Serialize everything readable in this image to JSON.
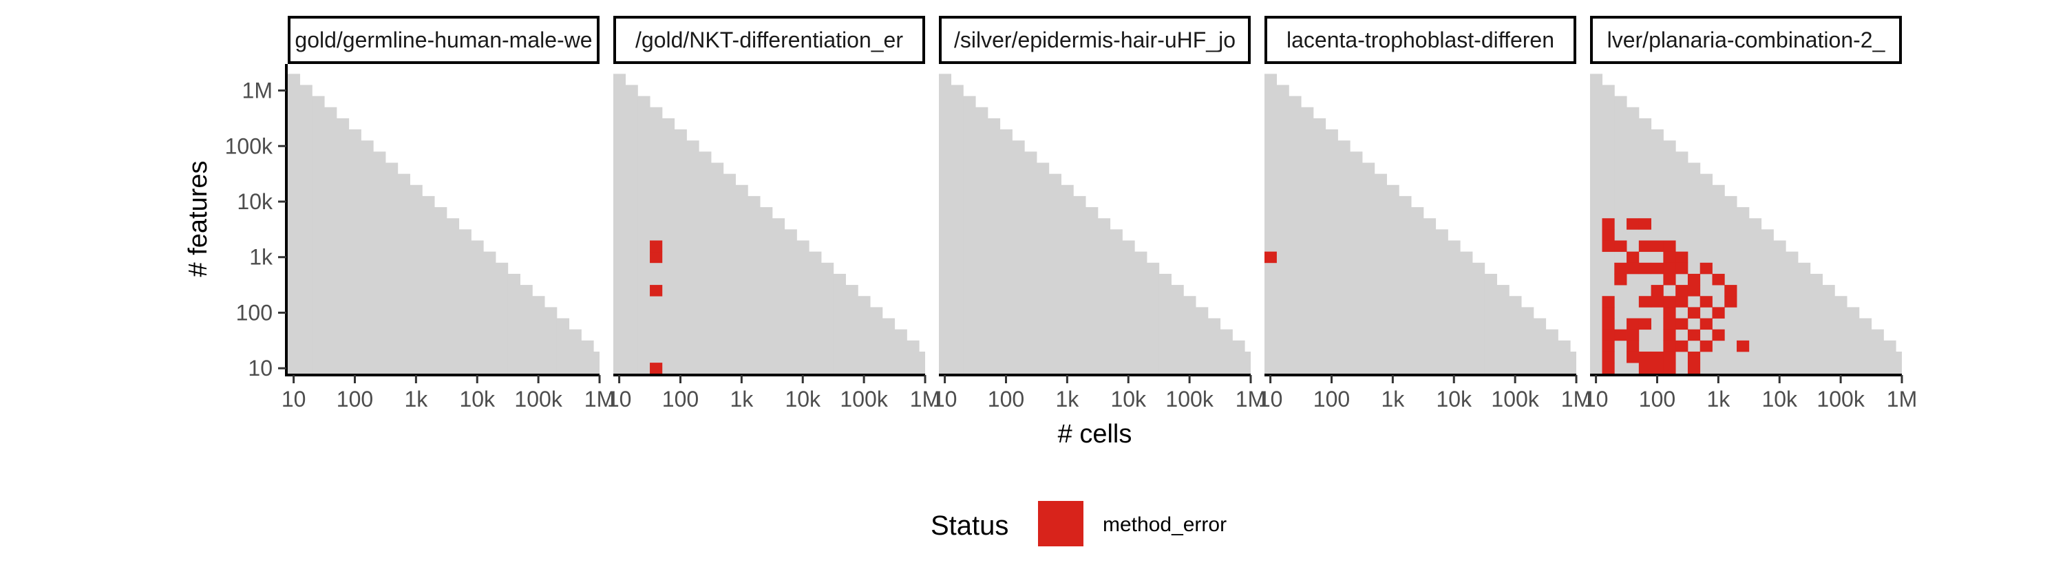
{
  "chart_data": {
    "type": "heatmap",
    "xlabel": "# cells",
    "ylabel": "# features",
    "x_scale": "log10",
    "y_scale": "log10",
    "xlim": [
      8,
      1000000
    ],
    "ylim": [
      8,
      3000000
    ],
    "x_ticks": [
      {
        "value": 10,
        "label": "10"
      },
      {
        "value": 100,
        "label": "100"
      },
      {
        "value": 1000,
        "label": "1k"
      },
      {
        "value": 10000,
        "label": "10k"
      },
      {
        "value": 100000,
        "label": "100k"
      },
      {
        "value": 1000000,
        "label": "1M"
      }
    ],
    "y_ticks": [
      {
        "value": 10,
        "label": "10"
      },
      {
        "value": 100,
        "label": "100"
      },
      {
        "value": 1000,
        "label": "1k"
      },
      {
        "value": 10000,
        "label": "10k"
      },
      {
        "value": 100000,
        "label": "100k"
      },
      {
        "value": 1000000,
        "label": "1M"
      }
    ],
    "grid": {
      "x_log10_min": 1.0,
      "x_log10_max": 6.0,
      "y_log10_min": 1.0,
      "log10_step": 0.2,
      "coverage_rule": "log10(cells) + log10(features) <= 7.2"
    },
    "legend": {
      "title": "Status",
      "position": "bottom",
      "items": [
        {
          "label": "method_error",
          "color": "#d8231b"
        }
      ]
    },
    "colors": {
      "covered": "#d3d3d3",
      "method_error": "#d8231b"
    },
    "panels": [
      {
        "title": "gold/germline-human-male-we",
        "method_error_cells": []
      },
      {
        "title": "/gold/NKT-differentiation_er",
        "method_error_cells": [
          {
            "cells": 40,
            "features": 10
          },
          {
            "cells": 40,
            "features": 250
          },
          {
            "cells": 40,
            "features": 1000
          },
          {
            "cells": 40,
            "features": 1600
          }
        ]
      },
      {
        "title": "/silver/epidermis-hair-uHF_jo",
        "method_error_cells": []
      },
      {
        "title": "lacenta-trophoblast-differen",
        "method_error_cells": [
          {
            "cells": 10,
            "features": 1000
          }
        ]
      },
      {
        "title": "lver/planaria-combination-2_",
        "method_error_cells": [
          {
            "cells": 16,
            "features": 4000
          },
          {
            "cells": 40,
            "features": 4000
          },
          {
            "cells": 63,
            "features": 4000
          },
          {
            "cells": 16,
            "features": 2500
          },
          {
            "cells": 16,
            "features": 1600
          },
          {
            "cells": 25,
            "features": 1600
          },
          {
            "cells": 63,
            "features": 1600
          },
          {
            "cells": 100,
            "features": 1600
          },
          {
            "cells": 160,
            "features": 1600
          },
          {
            "cells": 40,
            "features": 1000
          },
          {
            "cells": 160,
            "features": 1000
          },
          {
            "cells": 250,
            "features": 1000
          },
          {
            "cells": 25,
            "features": 630
          },
          {
            "cells": 40,
            "features": 630
          },
          {
            "cells": 63,
            "features": 630
          },
          {
            "cells": 100,
            "features": 630
          },
          {
            "cells": 160,
            "features": 630
          },
          {
            "cells": 250,
            "features": 630
          },
          {
            "cells": 630,
            "features": 630
          },
          {
            "cells": 25,
            "features": 400
          },
          {
            "cells": 160,
            "features": 400
          },
          {
            "cells": 400,
            "features": 400
          },
          {
            "cells": 1000,
            "features": 400
          },
          {
            "cells": 100,
            "features": 250
          },
          {
            "cells": 250,
            "features": 250
          },
          {
            "cells": 400,
            "features": 250
          },
          {
            "cells": 1600,
            "features": 250
          },
          {
            "cells": 16,
            "features": 160
          },
          {
            "cells": 63,
            "features": 160
          },
          {
            "cells": 100,
            "features": 160
          },
          {
            "cells": 160,
            "features": 160
          },
          {
            "cells": 250,
            "features": 160
          },
          {
            "cells": 630,
            "features": 160
          },
          {
            "cells": 1600,
            "features": 160
          },
          {
            "cells": 16,
            "features": 100
          },
          {
            "cells": 160,
            "features": 100
          },
          {
            "cells": 400,
            "features": 100
          },
          {
            "cells": 1000,
            "features": 100
          },
          {
            "cells": 16,
            "features": 63
          },
          {
            "cells": 40,
            "features": 63
          },
          {
            "cells": 63,
            "features": 63
          },
          {
            "cells": 160,
            "features": 63
          },
          {
            "cells": 250,
            "features": 63
          },
          {
            "cells": 630,
            "features": 63
          },
          {
            "cells": 16,
            "features": 40
          },
          {
            "cells": 25,
            "features": 40
          },
          {
            "cells": 40,
            "features": 40
          },
          {
            "cells": 160,
            "features": 40
          },
          {
            "cells": 400,
            "features": 40
          },
          {
            "cells": 1000,
            "features": 40
          },
          {
            "cells": 16,
            "features": 25
          },
          {
            "cells": 40,
            "features": 25
          },
          {
            "cells": 160,
            "features": 25
          },
          {
            "cells": 250,
            "features": 25
          },
          {
            "cells": 630,
            "features": 25
          },
          {
            "cells": 2500,
            "features": 25
          },
          {
            "cells": 16,
            "features": 16
          },
          {
            "cells": 40,
            "features": 16
          },
          {
            "cells": 63,
            "features": 16
          },
          {
            "cells": 100,
            "features": 16
          },
          {
            "cells": 160,
            "features": 16
          },
          {
            "cells": 400,
            "features": 16
          },
          {
            "cells": 16,
            "features": 10
          },
          {
            "cells": 63,
            "features": 10
          },
          {
            "cells": 100,
            "features": 10
          },
          {
            "cells": 160,
            "features": 10
          },
          {
            "cells": 400,
            "features": 10
          }
        ]
      }
    ]
  }
}
